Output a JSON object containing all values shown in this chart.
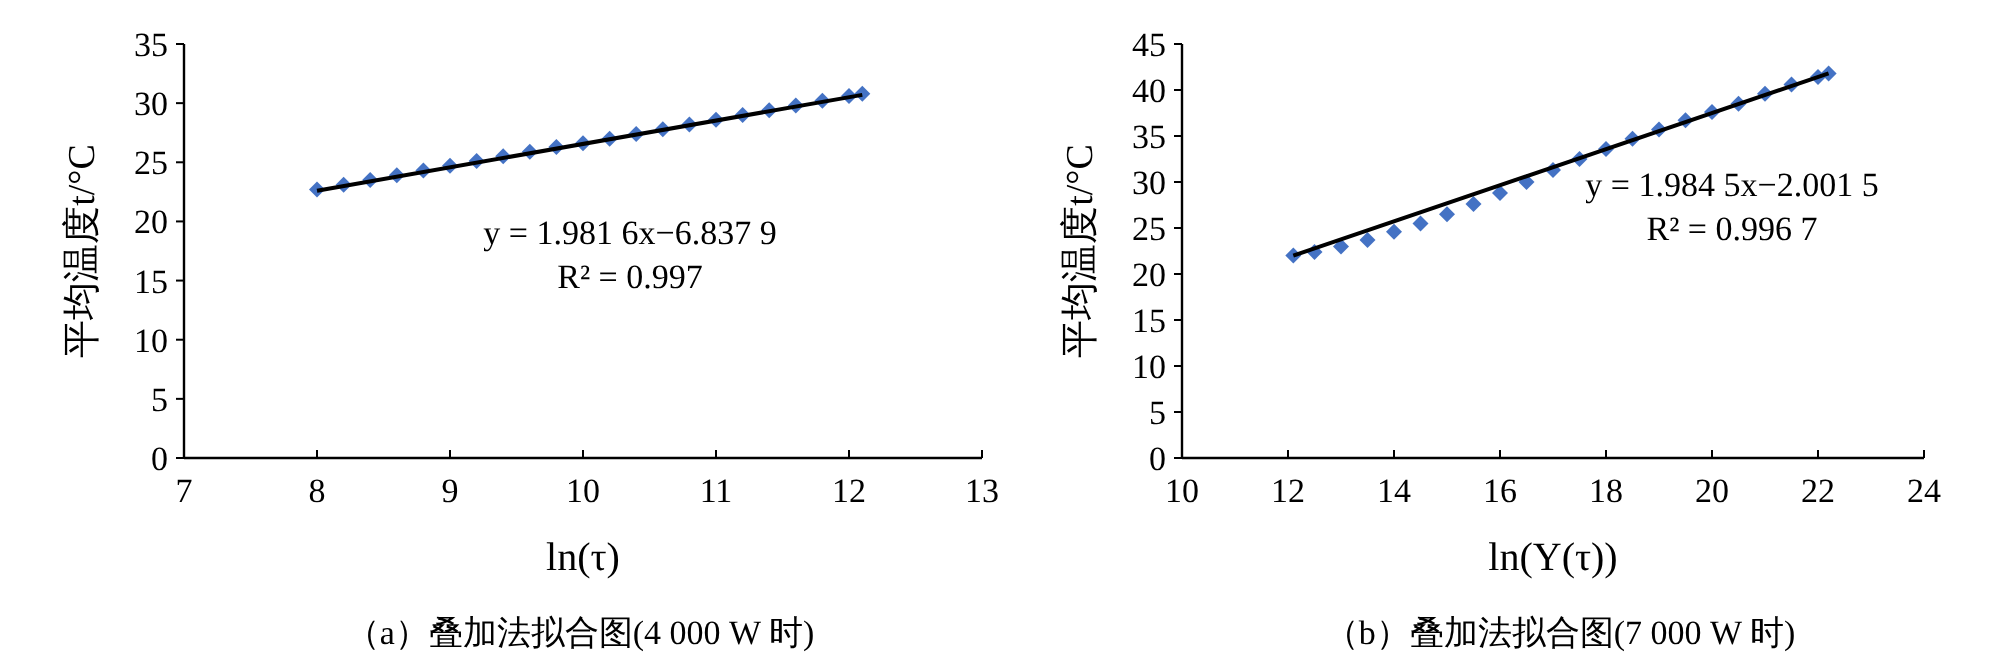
{
  "chart_data": [
    {
      "type": "scatter",
      "title": "（a）叠加法拟合图(4 000 W 时)",
      "xlabel": "ln(τ)",
      "ylabel": "平均温度t/°C",
      "xlim": [
        7,
        13
      ],
      "xticks": [
        7,
        8,
        9,
        10,
        11,
        12,
        13
      ],
      "ylim": [
        0,
        35
      ],
      "yticks": [
        0,
        5,
        10,
        15,
        20,
        25,
        30,
        35
      ],
      "grid": false,
      "annotations": [
        "y = 1.981 6x−6.837 9",
        "R² = 0.997"
      ],
      "series": [
        {
          "type": "scatter",
          "marker": "diamond",
          "color": "#4472c4",
          "x": [
            8.0,
            8.2,
            8.4,
            8.6,
            8.8,
            9.0,
            9.2,
            9.4,
            9.6,
            9.8,
            10.0,
            10.2,
            10.4,
            10.6,
            10.8,
            11.0,
            11.2,
            11.4,
            11.6,
            11.8,
            12.0,
            12.1
          ],
          "values": [
            22.7,
            23.1,
            23.5,
            23.9,
            24.3,
            24.7,
            25.1,
            25.5,
            25.9,
            26.3,
            26.6,
            27.0,
            27.4,
            27.8,
            28.2,
            28.6,
            29.0,
            29.4,
            29.8,
            30.2,
            30.6,
            30.8
          ]
        },
        {
          "type": "line",
          "marker": "none",
          "color": "#000000",
          "x": [
            8.0,
            12.1
          ],
          "values": [
            22.6,
            30.7
          ]
        }
      ]
    },
    {
      "type": "scatter",
      "title": "（b）叠加法拟合图(7 000 W 时)",
      "xlabel": "ln(Y(τ))",
      "ylabel": "平均温度t/°C",
      "xlim": [
        10,
        24
      ],
      "xticks": [
        10,
        12,
        14,
        16,
        18,
        20,
        22,
        24
      ],
      "ylim": [
        0,
        45
      ],
      "yticks": [
        0,
        5,
        10,
        15,
        20,
        25,
        30,
        35,
        40,
        45
      ],
      "grid": false,
      "annotations": [
        "y = 1.984 5x−2.001 5",
        "R² = 0.996 7"
      ],
      "series": [
        {
          "type": "scatter",
          "marker": "diamond",
          "color": "#4472c4",
          "x": [
            12.1,
            12.5,
            13.0,
            13.5,
            14.0,
            14.5,
            15.0,
            15.5,
            16.0,
            16.5,
            17.0,
            17.5,
            18.0,
            18.5,
            19.0,
            19.5,
            20.0,
            20.5,
            21.0,
            21.5,
            22.0,
            22.2
          ],
          "values": [
            22.0,
            22.4,
            23.0,
            23.7,
            24.6,
            25.5,
            26.5,
            27.6,
            28.8,
            30.0,
            31.3,
            32.5,
            33.6,
            34.7,
            35.7,
            36.7,
            37.6,
            38.5,
            39.6,
            40.6,
            41.4,
            41.8
          ]
        },
        {
          "type": "line",
          "marker": "none",
          "color": "#000000",
          "x": [
            12.1,
            22.2
          ],
          "values": [
            22.0,
            41.8
          ]
        }
      ]
    }
  ]
}
